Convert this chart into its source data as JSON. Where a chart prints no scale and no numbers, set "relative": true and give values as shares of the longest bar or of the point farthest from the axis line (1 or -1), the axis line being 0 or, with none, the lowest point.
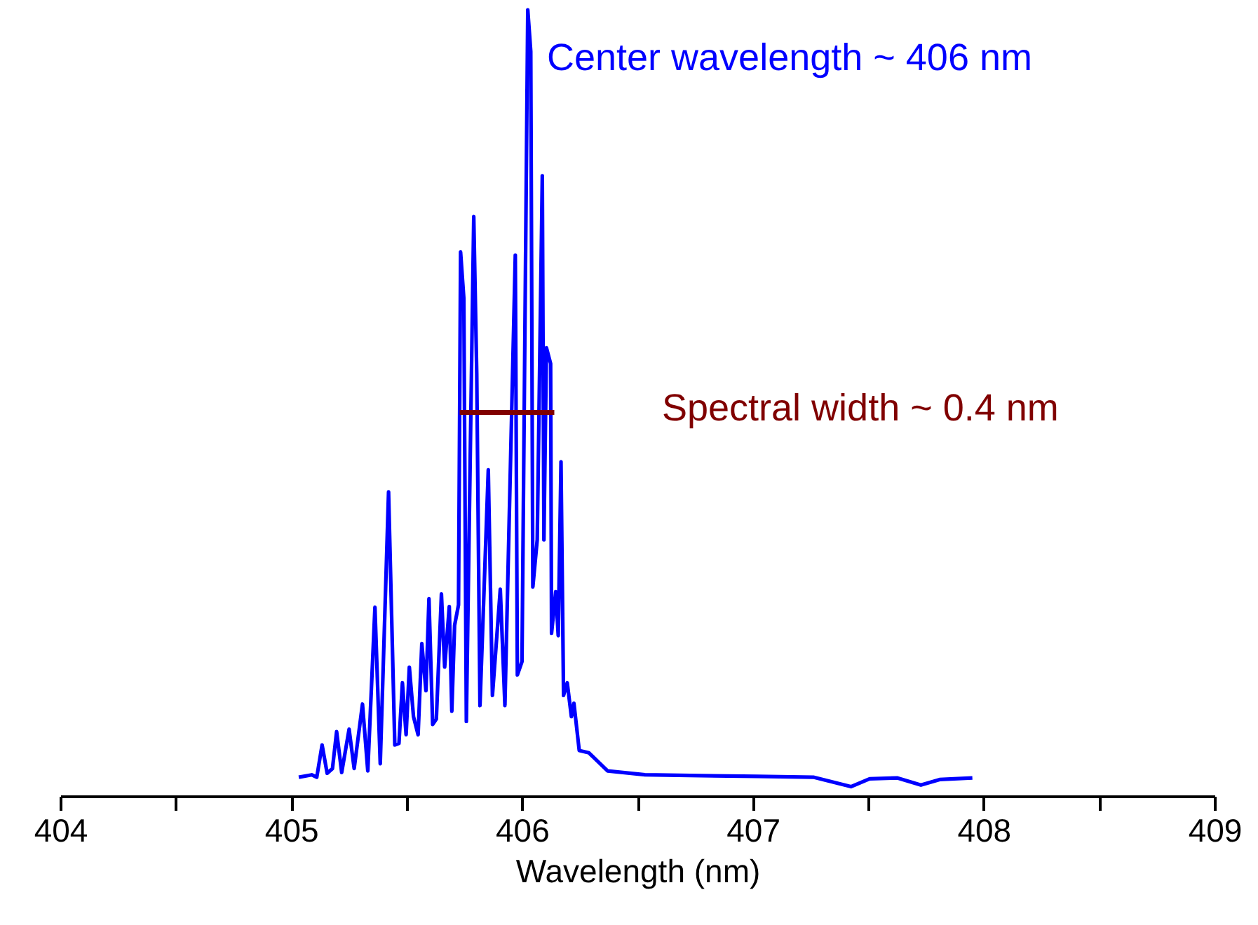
{
  "chart_data": {
    "type": "line",
    "relative": true,
    "xlabel": "Wavelength (nm)",
    "xlim": [
      404,
      409
    ],
    "xticks": [
      404,
      {
        "value": 404.5,
        "label": null
      },
      405,
      {
        "value": 405.5,
        "label": null
      },
      406,
      {
        "value": 406.5,
        "label": null
      },
      407,
      {
        "value": 407.5,
        "label": null
      },
      408,
      {
        "value": 408.5,
        "label": null
      },
      409
    ],
    "grid": false,
    "marker": "none",
    "line_style": "solid",
    "annotations": [
      "Center wavelength ~ 406 nm",
      "Spectral width ~ 0.4 nm"
    ],
    "series": [
      {
        "color": "#0000ff",
        "x": [
          405.033,
          405.089,
          405.111,
          405.134,
          405.156,
          405.179,
          405.197,
          405.219,
          405.251,
          405.273,
          405.309,
          405.332,
          405.363,
          405.386,
          405.422,
          405.449,
          405.467,
          405.482,
          405.498,
          405.512,
          405.53,
          405.55,
          405.566,
          405.584,
          405.597,
          405.613,
          405.629,
          405.651,
          405.665,
          405.685,
          405.696,
          405.708,
          405.725,
          405.734,
          405.748,
          405.759,
          405.791,
          405.804,
          405.818,
          405.854,
          405.872,
          405.906,
          405.926,
          405.971,
          405.98,
          406.0,
          406.025,
          406.038,
          406.047,
          406.066,
          406.088,
          406.095,
          406.106,
          406.124,
          406.128,
          406.146,
          406.157,
          406.169,
          406.18,
          406.196,
          406.214,
          406.225,
          406.248,
          406.29,
          406.371,
          406.533,
          406.777,
          407.019,
          407.262,
          407.425,
          407.506,
          407.627,
          407.728,
          407.809,
          407.951
        ],
        "values": [
          0.024,
          0.027,
          0.024,
          0.065,
          0.029,
          0.035,
          0.082,
          0.03,
          0.085,
          0.035,
          0.117,
          0.032,
          0.24,
          0.041,
          0.387,
          0.065,
          0.067,
          0.144,
          0.078,
          0.164,
          0.101,
          0.078,
          0.194,
          0.134,
          0.251,
          0.091,
          0.098,
          0.257,
          0.164,
          0.241,
          0.108,
          0.217,
          0.243,
          0.692,
          0.633,
          0.095,
          0.737,
          0.537,
          0.115,
          0.415,
          0.128,
          0.263,
          0.115,
          0.688,
          0.154,
          0.171,
          1,
          0.947,
          0.266,
          0.326,
          0.789,
          0.326,
          0.57,
          0.55,
          0.207,
          0.26,
          0.204,
          0.425,
          0.128,
          0.144,
          0.101,
          0.118,
          0.058,
          0.055,
          0.032,
          0.027,
          0.026,
          0.025,
          0.024,
          0.012,
          0.022,
          0.023,
          0.014,
          0.021,
          0.023
        ]
      },
      {
        "color": "#800000",
        "x": [
          405.73,
          406.14
        ],
        "values": [
          0.488,
          0.488
        ]
      }
    ]
  }
}
